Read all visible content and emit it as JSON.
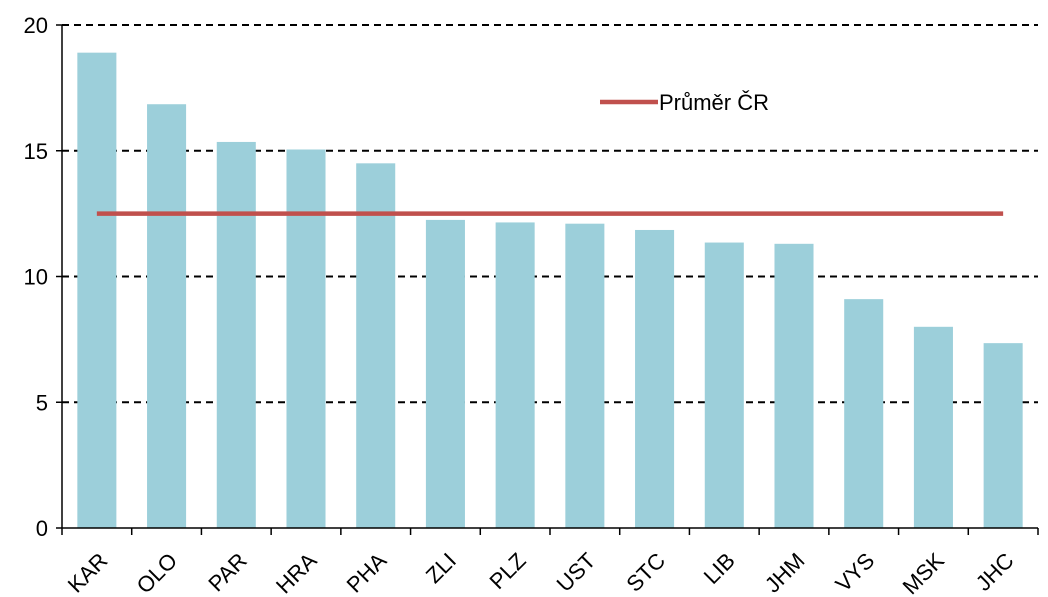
{
  "chart_data": {
    "type": "bar",
    "categories": [
      "KAR",
      "OLO",
      "PAR",
      "HRA",
      "PHA",
      "ZLI",
      "PLZ",
      "UST",
      "STC",
      "LIB",
      "JHM",
      "VYS",
      "MSK",
      "JHC"
    ],
    "series": [
      {
        "values": [
          18.9,
          16.85,
          15.35,
          15.05,
          14.5,
          12.25,
          12.15,
          12.1,
          11.85,
          11.35,
          11.3,
          9.1,
          8.0,
          7.35
        ]
      }
    ],
    "reference_line": {
      "name": "Průměr ČR",
      "value": 12.5
    },
    "ylim": [
      0,
      20
    ],
    "yticks": [
      0,
      5,
      10,
      15,
      20
    ],
    "grid": "horizontal-dashed",
    "legend_position": "top-right",
    "colors": {
      "bars": "#9ccfda",
      "reference_line": "#c0504d",
      "grid": "#000000",
      "axis": "#000000"
    }
  }
}
